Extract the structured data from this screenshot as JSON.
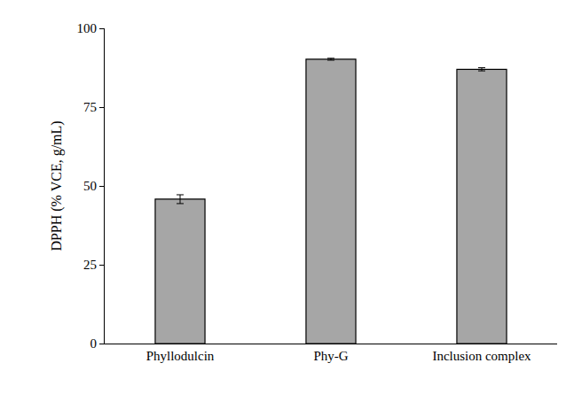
{
  "chart_data": {
    "type": "bar",
    "y_label": "DPPH (% VCE, g/mL)",
    "categories": [
      "Phyllodulcin",
      "Phy-G",
      "Inclusion complex"
    ],
    "values": [
      45.8,
      90.2,
      87.0
    ],
    "error": [
      1.4,
      0.3,
      0.5
    ],
    "color": "#a6a6a6",
    "ylim": [
      0,
      100
    ],
    "yticks": [
      0,
      25,
      50,
      75,
      100
    ],
    "grid": false
  }
}
